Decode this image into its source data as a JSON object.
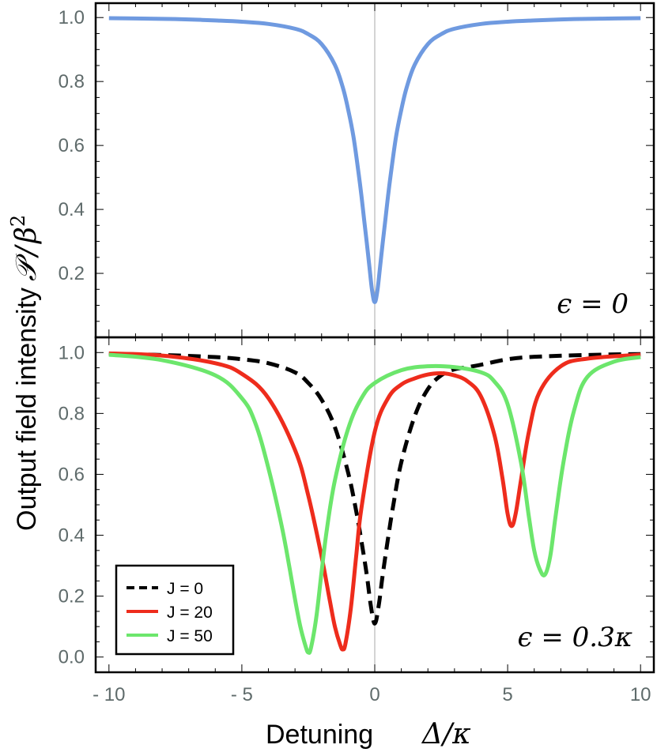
{
  "ylabel": {
    "text": "Output field intensity",
    "symbol_script_p": "𝒫",
    "symbol_slash": "/",
    "symbol_beta": "β",
    "symbol_exp": "2"
  },
  "xlabel": {
    "text": "Detuning",
    "symbol": "Δ/κ"
  },
  "colors": {
    "top_curve": "#6f9ae0",
    "j0": "#000000",
    "j20": "#ee2c1c",
    "j50": "#6ce66c",
    "tick_label": "#5f6b6b"
  },
  "chart_data": [
    {
      "type": "line",
      "panel": "top",
      "annotation": "ϵ = 0",
      "xlim": [
        -10.5,
        10.5
      ],
      "ylim": [
        0.0,
        1.045
      ],
      "yticks": [
        0.2,
        0.4,
        0.6,
        0.8,
        1.0
      ],
      "ytick_labels": [
        "0.2",
        "0.4",
        "0.6",
        "0.8",
        "1.0"
      ],
      "series": [
        {
          "name": "ϵ = 0",
          "color": "#6f9ae0",
          "style": "solid",
          "x": [
            -10,
            -9,
            -8,
            -7,
            -6,
            -5,
            -4,
            -3,
            -2.5,
            -2,
            -1.5,
            -1.2,
            -1,
            -0.8,
            -0.6,
            -0.5,
            -0.4,
            -0.3,
            -0.2,
            -0.1,
            0,
            0.1,
            0.2,
            0.3,
            0.4,
            0.5,
            0.6,
            0.8,
            1,
            1.2,
            1.5,
            2,
            2.5,
            3,
            4,
            5,
            6,
            7,
            8,
            9,
            10
          ],
          "y": [
            0.998,
            0.997,
            0.996,
            0.994,
            0.991,
            0.987,
            0.98,
            0.965,
            0.948,
            0.917,
            0.852,
            0.781,
            0.712,
            0.627,
            0.508,
            0.442,
            0.368,
            0.296,
            0.22,
            0.146,
            0.11,
            0.146,
            0.22,
            0.296,
            0.368,
            0.442,
            0.508,
            0.627,
            0.712,
            0.781,
            0.852,
            0.917,
            0.948,
            0.965,
            0.98,
            0.987,
            0.991,
            0.994,
            0.996,
            0.997,
            0.998
          ]
        }
      ]
    },
    {
      "type": "line",
      "panel": "bottom",
      "annotation": "ϵ = 0.3κ",
      "xlim": [
        -10.5,
        10.5
      ],
      "ylim": [
        -0.05,
        1.05
      ],
      "xticks": [
        -10,
        -5,
        0,
        5,
        10
      ],
      "xtick_labels": [
        "- 10",
        "- 5",
        "0",
        "5",
        "10"
      ],
      "yticks": [
        0.0,
        0.2,
        0.4,
        0.6,
        0.8,
        1.0
      ],
      "ytick_labels": [
        "0.0",
        "0.2",
        "0.4",
        "0.6",
        "0.8",
        "1.0"
      ],
      "legend": {
        "placement": "bottom-left",
        "entries": [
          {
            "label": "J = 0",
            "color": "#000000",
            "style": "dashed"
          },
          {
            "label": "J = 20",
            "color": "#ee2c1c",
            "style": "solid"
          },
          {
            "label": "J = 50",
            "color": "#6ce66c",
            "style": "solid"
          }
        ]
      },
      "series": [
        {
          "name": "J = 0",
          "color": "#000000",
          "style": "dashed",
          "x": [
            -10,
            -8,
            -6,
            -5,
            -4,
            -3,
            -2.5,
            -2,
            -1.5,
            -1,
            -0.7,
            -0.5,
            -0.3,
            -0.15,
            0,
            0.15,
            0.3,
            0.5,
            0.7,
            1,
            1.5,
            2,
            2.5,
            3,
            3.5,
            4,
            5,
            6,
            8,
            10
          ],
          "y": [
            0.996,
            0.992,
            0.985,
            0.978,
            0.965,
            0.935,
            0.9,
            0.845,
            0.755,
            0.605,
            0.48,
            0.38,
            0.27,
            0.17,
            0.11,
            0.17,
            0.27,
            0.39,
            0.5,
            0.64,
            0.79,
            0.88,
            0.925,
            0.945,
            0.952,
            0.96,
            0.978,
            0.986,
            0.992,
            0.995
          ]
        },
        {
          "name": "J = 20",
          "color": "#ee2c1c",
          "style": "solid",
          "x": [
            -10,
            -8,
            -6,
            -5,
            -4,
            -3,
            -2.5,
            -2,
            -1.7,
            -1.5,
            -1.3,
            -1.2,
            -1.1,
            -0.9,
            -0.7,
            -0.5,
            0,
            0.5,
            1,
            1.5,
            2,
            2.5,
            3,
            3.5,
            4,
            4.5,
            4.8,
            5.0,
            5.15,
            5.3,
            5.5,
            5.8,
            6.2,
            7,
            8,
            10
          ],
          "y": [
            0.997,
            0.99,
            0.965,
            0.93,
            0.85,
            0.68,
            0.53,
            0.33,
            0.19,
            0.1,
            0.04,
            0.025,
            0.045,
            0.16,
            0.33,
            0.49,
            0.74,
            0.85,
            0.895,
            0.915,
            0.928,
            0.932,
            0.925,
            0.905,
            0.855,
            0.73,
            0.59,
            0.47,
            0.43,
            0.47,
            0.58,
            0.74,
            0.87,
            0.955,
            0.98,
            0.993
          ]
        },
        {
          "name": "J = 50",
          "color": "#6ce66c",
          "style": "solid",
          "x": [
            -10,
            -8,
            -6,
            -5,
            -4.5,
            -4,
            -3.5,
            -3.2,
            -3.0,
            -2.8,
            -2.6,
            -2.5,
            -2.4,
            -2.2,
            -2.0,
            -1.8,
            -1.5,
            -1.0,
            -0.5,
            0,
            1,
            2,
            3,
            4,
            4.5,
            5,
            5.5,
            5.8,
            6.0,
            6.2,
            6.4,
            6.6,
            6.8,
            7.1,
            7.5,
            8,
            9,
            10
          ],
          "y": [
            0.993,
            0.975,
            0.925,
            0.85,
            0.77,
            0.62,
            0.43,
            0.29,
            0.19,
            0.1,
            0.035,
            0.015,
            0.03,
            0.13,
            0.28,
            0.42,
            0.58,
            0.75,
            0.85,
            0.9,
            0.942,
            0.955,
            0.952,
            0.935,
            0.905,
            0.83,
            0.64,
            0.46,
            0.35,
            0.29,
            0.27,
            0.33,
            0.46,
            0.64,
            0.81,
            0.92,
            0.97,
            0.985
          ]
        }
      ]
    }
  ]
}
